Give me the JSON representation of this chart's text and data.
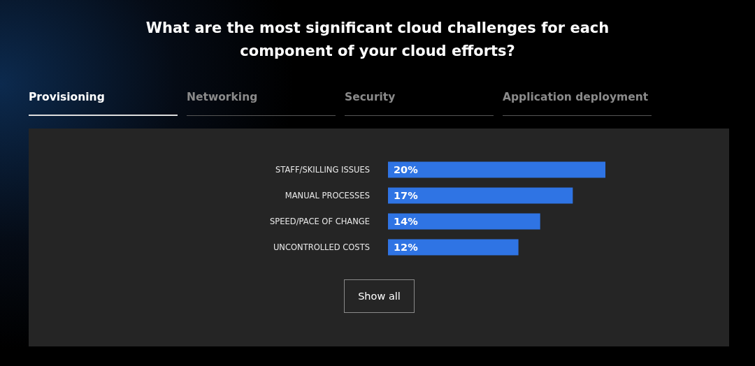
{
  "chart_data": {
    "type": "bar",
    "orientation": "horizontal",
    "title": "What are the most significant cloud challenges for each component of your cloud efforts?",
    "categories": [
      "STAFF/SKILLING ISSUES",
      "MANUAL PROCESSES",
      "SPEED/PACE OF CHANGE",
      "UNCONTROLLED COSTS"
    ],
    "values": [
      20,
      17,
      14,
      12
    ],
    "value_labels": [
      "20%",
      "17%",
      "14%",
      "12%"
    ],
    "color": "#2f74e4",
    "annotations": [
      "Provisioning",
      "Networking",
      "Security",
      "Application deployment",
      "Show all"
    ]
  }
}
